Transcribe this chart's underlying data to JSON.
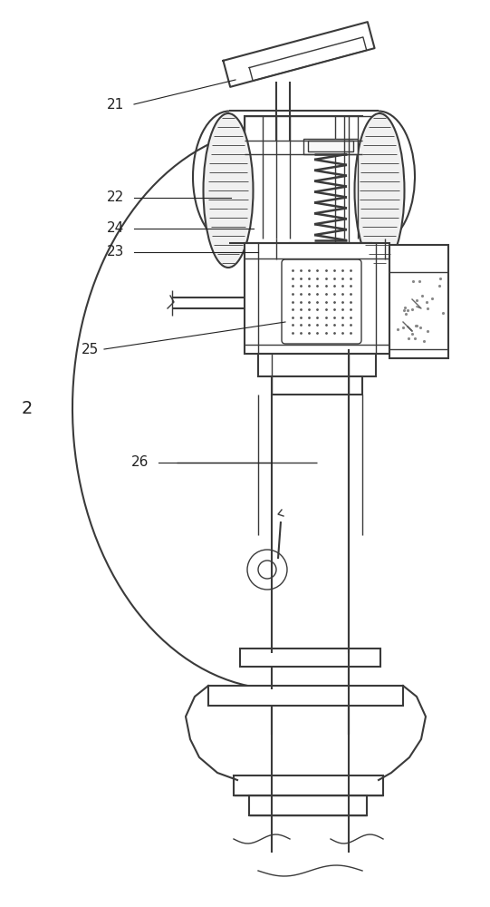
{
  "line_color": "#3a3a3a",
  "bg_color": "#ffffff",
  "figsize": [
    5.41,
    10.0
  ],
  "dpi": 100
}
